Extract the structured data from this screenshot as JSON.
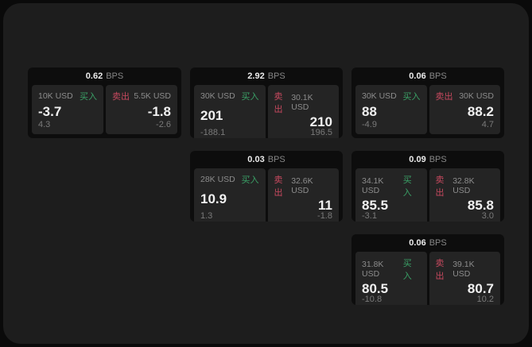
{
  "labels": {
    "bps_unit": "BPS",
    "buy": "买入",
    "sell": "卖出"
  },
  "colors": {
    "buy_accent": "#3aa066",
    "sell_accent": "#c7495f",
    "panel_background": "#1d1d1d",
    "card_background": "#0d0d0d",
    "pane_background": "#242424"
  },
  "cards": [
    {
      "bps": "0.62",
      "buy_size": "10K USD",
      "sell_size": "5.5K USD",
      "buy_price": "-3.7",
      "sell_price": "-1.8",
      "buy_sub": "4.3",
      "sell_sub": "-2.6"
    },
    {
      "bps": "2.92",
      "buy_size": "30K USD",
      "sell_size": "30.1K USD",
      "buy_price": "201",
      "sell_price": "210",
      "buy_sub": "-188.1",
      "sell_sub": "196.5"
    },
    {
      "bps": "0.06",
      "buy_size": "30K USD",
      "sell_size": "30K USD",
      "buy_price": "88",
      "sell_price": "88.2",
      "buy_sub": "-4.9",
      "sell_sub": "4.7"
    },
    {
      "bps": "0.03",
      "buy_size": "28K USD",
      "sell_size": "32.6K USD",
      "buy_price": "10.9",
      "sell_price": "11",
      "buy_sub": "1.3",
      "sell_sub": "-1.8"
    },
    {
      "bps": "0.09",
      "buy_size": "34.1K USD",
      "sell_size": "32.8K USD",
      "buy_price": "85.5",
      "sell_price": "85.8",
      "buy_sub": "-3.1",
      "sell_sub": "3.0"
    },
    {
      "bps": "0.06",
      "buy_size": "31.8K USD",
      "sell_size": "39.1K USD",
      "buy_price": "80.5",
      "sell_price": "80.7",
      "buy_sub": "-10.8",
      "sell_sub": "10.2"
    }
  ]
}
